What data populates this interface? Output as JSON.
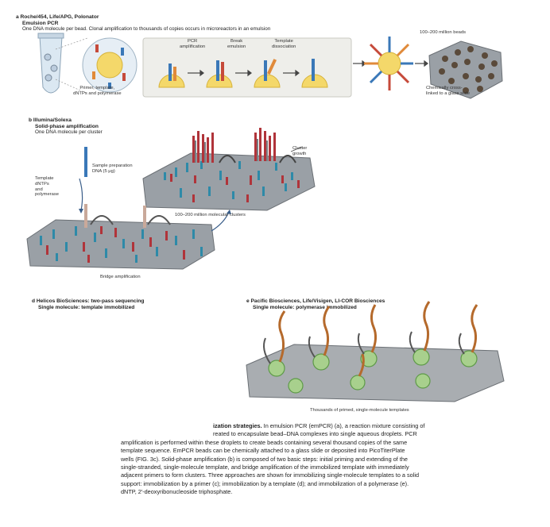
{
  "panel_a": {
    "letter": "a",
    "title": "Roche/454, Life/APG, Polonator",
    "subtitle": "Emulsion PCR",
    "description": "One DNA molecule per bead. Clonal amplification to thousands of copies occurs in microreactors in an emulsion",
    "steps": [
      "PCR\namplification",
      "Break\nemulsion",
      "Template\ndissociation"
    ],
    "beads_label": "100–200 million beads",
    "mix_label": "Primer, template,\ndNTPs and polymerase",
    "slide_label": "Chemically cross-\nlinked to a glass slide"
  },
  "panel_b": {
    "letter": "b",
    "title": "Illumina/Solexa",
    "subtitle": "Solid-phase amplification",
    "description": "One DNA molecule per cluster",
    "sample_label": "Sample preparation\nDNA (5 μg)",
    "template_label": "Template\ndNTPs\nand\npolymerase",
    "cluster_label": "Cluster\ngrowth",
    "clusters_count_label": "100–200 million molecular clusters",
    "bridge_label": "Bridge amplification"
  },
  "panel_d": {
    "letter": "d",
    "title": "Helicos BioSciences: two-pass sequencing",
    "subtitle": "Single molecule: template immobilized"
  },
  "panel_e": {
    "letter": "e",
    "title": "Pacific Biosciences, Life/Visigen, LI-COR Biosciences",
    "subtitle": "Single molecule: polymerase immobilized",
    "bottom_label": "Thousands of primed, single-molecule templates"
  },
  "caption": {
    "lines": [
      {
        "bold": "ization strategies.",
        "text": " In emulsion PCR (emPCR) (a), a reaction mixture consisting of"
      },
      {
        "bold": "",
        "text": "reated to encapsulate bead–DNA complexes into single aqueous droplets. PCR"
      },
      {
        "bold": "",
        "text": "amplification is performed within these droplets to create beads containing several thousand copies of the same"
      },
      {
        "bold": "",
        "text": "template sequence. EmPCR beads can be chemically attached to a glass slide or deposited into PicoTiterPlate"
      },
      {
        "bold": "",
        "text": "wells (FIG. 3c). Solid-phase amplification (b) is composed of two basic steps: initial priming and extending of the"
      },
      {
        "bold": "",
        "text": "single-stranded, single-molecule template, and bridge amplification of the immobilized template with immediately"
      },
      {
        "bold": "",
        "text": "adjacent primers to form clusters. Three approaches are shown for immobilizing single-molecule templates to a solid"
      },
      {
        "bold": "",
        "text": "support: immobilization by a primer (c); immobilization by a template (d); and immobilization of a polymerase (e)."
      },
      {
        "bold": "",
        "text": "dNTP, 2′-deoxyribonucleoside triphosphate."
      }
    ]
  }
}
